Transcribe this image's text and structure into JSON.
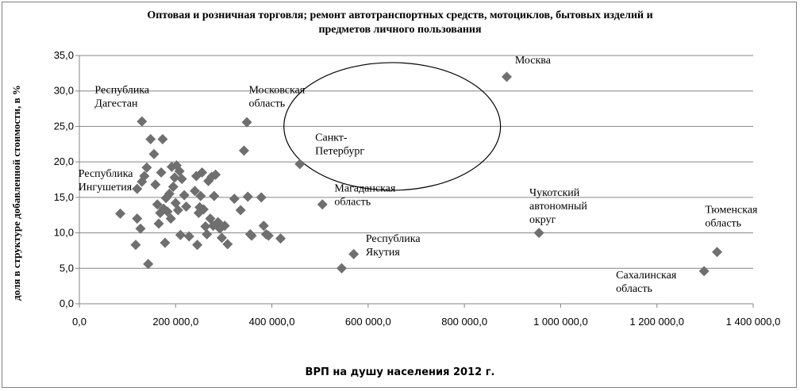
{
  "chart_data": {
    "type": "scatter",
    "title_line1": "Оптовая и розничная торговля; ремонт автотранспортных средств, мотоциклов, бытовых изделий и",
    "title_line2": "предметов личного пользования",
    "xlabel": "ВРП на душу населения 2012 г.",
    "ylabel": "доля в структуре добавленной стоимости, в %",
    "xlim": [
      0,
      1400000
    ],
    "ylim": [
      0,
      35
    ],
    "x_ticks": [
      0,
      200000,
      400000,
      600000,
      800000,
      1000000,
      1200000,
      1400000
    ],
    "x_tick_labels": [
      "0,0",
      "200 000,0",
      "400 000,0",
      "600 000,0",
      "800 000,0",
      "1 000 000,0",
      "1 200 000,0",
      "1 400 000,0"
    ],
    "y_ticks": [
      0,
      5,
      10,
      15,
      20,
      25,
      30,
      35
    ],
    "y_tick_labels": [
      "0,0",
      "5,0",
      "10,0",
      "15,0",
      "20,0",
      "25,0",
      "30,0",
      "35,0"
    ],
    "grid": "horizontal",
    "marker": "diamond",
    "marker_color": "#6f6f6f",
    "points": [
      {
        "x": 130000,
        "y": 25.7
      },
      {
        "x": 888000,
        "y": 32.0
      },
      {
        "x": 348000,
        "y": 25.6
      },
      {
        "x": 458000,
        "y": 19.7
      },
      {
        "x": 505000,
        "y": 14.0
      },
      {
        "x": 955000,
        "y": 10.0
      },
      {
        "x": 1325000,
        "y": 7.3
      },
      {
        "x": 1298000,
        "y": 4.6
      },
      {
        "x": 570000,
        "y": 7.0
      },
      {
        "x": 545000,
        "y": 5.0
      },
      {
        "x": 120000,
        "y": 16.2
      },
      {
        "x": 143000,
        "y": 5.6
      },
      {
        "x": 85000,
        "y": 12.7
      },
      {
        "x": 117000,
        "y": 8.3
      },
      {
        "x": 120000,
        "y": 12.0
      },
      {
        "x": 127000,
        "y": 10.6
      },
      {
        "x": 130000,
        "y": 17.2
      },
      {
        "x": 135000,
        "y": 18.0
      },
      {
        "x": 140000,
        "y": 19.2
      },
      {
        "x": 148000,
        "y": 23.2
      },
      {
        "x": 155000,
        "y": 21.1
      },
      {
        "x": 158000,
        "y": 16.8
      },
      {
        "x": 162000,
        "y": 14.0
      },
      {
        "x": 165000,
        "y": 11.3
      },
      {
        "x": 168000,
        "y": 12.8
      },
      {
        "x": 170000,
        "y": 18.5
      },
      {
        "x": 173000,
        "y": 23.2
      },
      {
        "x": 175000,
        "y": 13.4
      },
      {
        "x": 178000,
        "y": 8.6
      },
      {
        "x": 180000,
        "y": 14.9
      },
      {
        "x": 183000,
        "y": 13.0
      },
      {
        "x": 187000,
        "y": 15.5
      },
      {
        "x": 190000,
        "y": 12.0
      },
      {
        "x": 192000,
        "y": 19.3
      },
      {
        "x": 195000,
        "y": 16.5
      },
      {
        "x": 198000,
        "y": 17.8
      },
      {
        "x": 200000,
        "y": 14.2
      },
      {
        "x": 202000,
        "y": 19.5
      },
      {
        "x": 205000,
        "y": 13.2
      },
      {
        "x": 208000,
        "y": 18.7
      },
      {
        "x": 210000,
        "y": 9.7
      },
      {
        "x": 213000,
        "y": 17.6
      },
      {
        "x": 218000,
        "y": 15.3
      },
      {
        "x": 222000,
        "y": 13.7
      },
      {
        "x": 228000,
        "y": 9.5
      },
      {
        "x": 240000,
        "y": 15.9
      },
      {
        "x": 243000,
        "y": 18.0
      },
      {
        "x": 245000,
        "y": 8.3
      },
      {
        "x": 248000,
        "y": 12.8
      },
      {
        "x": 250000,
        "y": 13.6
      },
      {
        "x": 252000,
        "y": 15.2
      },
      {
        "x": 255000,
        "y": 18.5
      },
      {
        "x": 258000,
        "y": 13.3
      },
      {
        "x": 262000,
        "y": 10.9
      },
      {
        "x": 265000,
        "y": 9.8
      },
      {
        "x": 268000,
        "y": 17.3
      },
      {
        "x": 272000,
        "y": 12.0
      },
      {
        "x": 275000,
        "y": 17.9
      },
      {
        "x": 278000,
        "y": 11.0
      },
      {
        "x": 280000,
        "y": 15.2
      },
      {
        "x": 283000,
        "y": 18.2
      },
      {
        "x": 288000,
        "y": 11.5
      },
      {
        "x": 292000,
        "y": 10.6
      },
      {
        "x": 296000,
        "y": 9.3
      },
      {
        "x": 302000,
        "y": 11.0
      },
      {
        "x": 308000,
        "y": 8.4
      },
      {
        "x": 322000,
        "y": 14.8
      },
      {
        "x": 335000,
        "y": 13.2
      },
      {
        "x": 342000,
        "y": 21.6
      },
      {
        "x": 350000,
        "y": 15.1
      },
      {
        "x": 355000,
        "y": 9.8
      },
      {
        "x": 358000,
        "y": 9.6
      },
      {
        "x": 378000,
        "y": 15.0
      },
      {
        "x": 383000,
        "y": 11.0
      },
      {
        "x": 388000,
        "y": 9.8
      },
      {
        "x": 393000,
        "y": 9.6
      },
      {
        "x": 418000,
        "y": 9.2
      }
    ],
    "annotations": [
      {
        "lines": [
          "Москва"
        ],
        "x": 905000,
        "y": 33.9
      },
      {
        "lines": [
          "Республика",
          "Дагестан"
        ],
        "x": 32000,
        "y": 29.7
      },
      {
        "lines": [
          "Московская",
          "область"
        ],
        "x": 352000,
        "y": 29.7
      },
      {
        "lines": [
          "Санкт-",
          "Петербург"
        ],
        "x": 490000,
        "y": 23.0
      },
      {
        "lines": [
          "Республика",
          "Ингушетия"
        ],
        "x": -2000,
        "y": 17.9
      },
      {
        "lines": [
          "Магаданская",
          "область"
        ],
        "x": 530000,
        "y": 15.8
      },
      {
        "lines": [
          "Чукотский",
          "автономный",
          "округ"
        ],
        "x": 935000,
        "y": 15.2
      },
      {
        "lines": [
          "Тюменская",
          "область"
        ],
        "x": 1300000,
        "y": 12.8
      },
      {
        "lines": [
          "Республика",
          "Якутия"
        ],
        "x": 595000,
        "y": 8.7
      },
      {
        "lines": [
          "Сахалинская",
          "область"
        ],
        "x": 1115000,
        "y": 3.6
      }
    ],
    "ellipse": {
      "cx": 650000,
      "cy": 25.0,
      "rx": 225000,
      "ry": 9.0
    }
  }
}
